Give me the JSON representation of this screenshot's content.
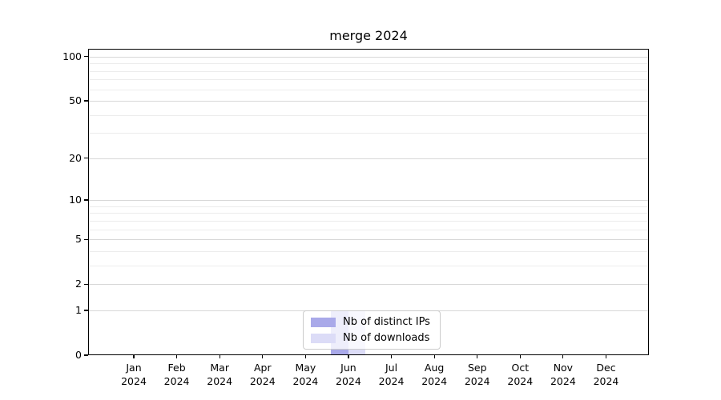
{
  "chart_data": {
    "type": "bar",
    "title": "merge 2024",
    "categories": [
      "Jan",
      "Feb",
      "Mar",
      "Apr",
      "May",
      "Jun",
      "Jul",
      "Aug",
      "Sep",
      "Oct",
      "Nov",
      "Dec"
    ],
    "category_year": "2024",
    "series": [
      {
        "name": "Nb of distinct IPs",
        "color": "#a9a9e9",
        "values": [
          0,
          0,
          0,
          0,
          0,
          1,
          0,
          0,
          0,
          0,
          0,
          0
        ]
      },
      {
        "name": "Nb of downloads",
        "color": "#dcdcf7",
        "values": [
          0,
          0,
          0,
          0,
          0,
          1,
          0,
          0,
          0,
          0,
          0,
          0
        ]
      }
    ],
    "xlabel": "",
    "ylabel": "",
    "yscale": "log1p",
    "ylim": [
      0,
      113
    ],
    "yticks": [
      0,
      1,
      2,
      5,
      10,
      20,
      50,
      100
    ],
    "ytick_labels": [
      "0",
      "1",
      "2",
      "5",
      "10",
      "20",
      "50",
      "100"
    ],
    "yticks_minor": [
      3,
      4,
      6,
      7,
      8,
      9,
      30,
      40,
      60,
      70,
      80,
      90
    ],
    "grid": true,
    "legend_position": "lower center"
  },
  "colors": {
    "axis": "#000000",
    "grid_major": "#d8d8d8",
    "grid_minor": "#ececec",
    "legend_border": "#cccccc"
  }
}
